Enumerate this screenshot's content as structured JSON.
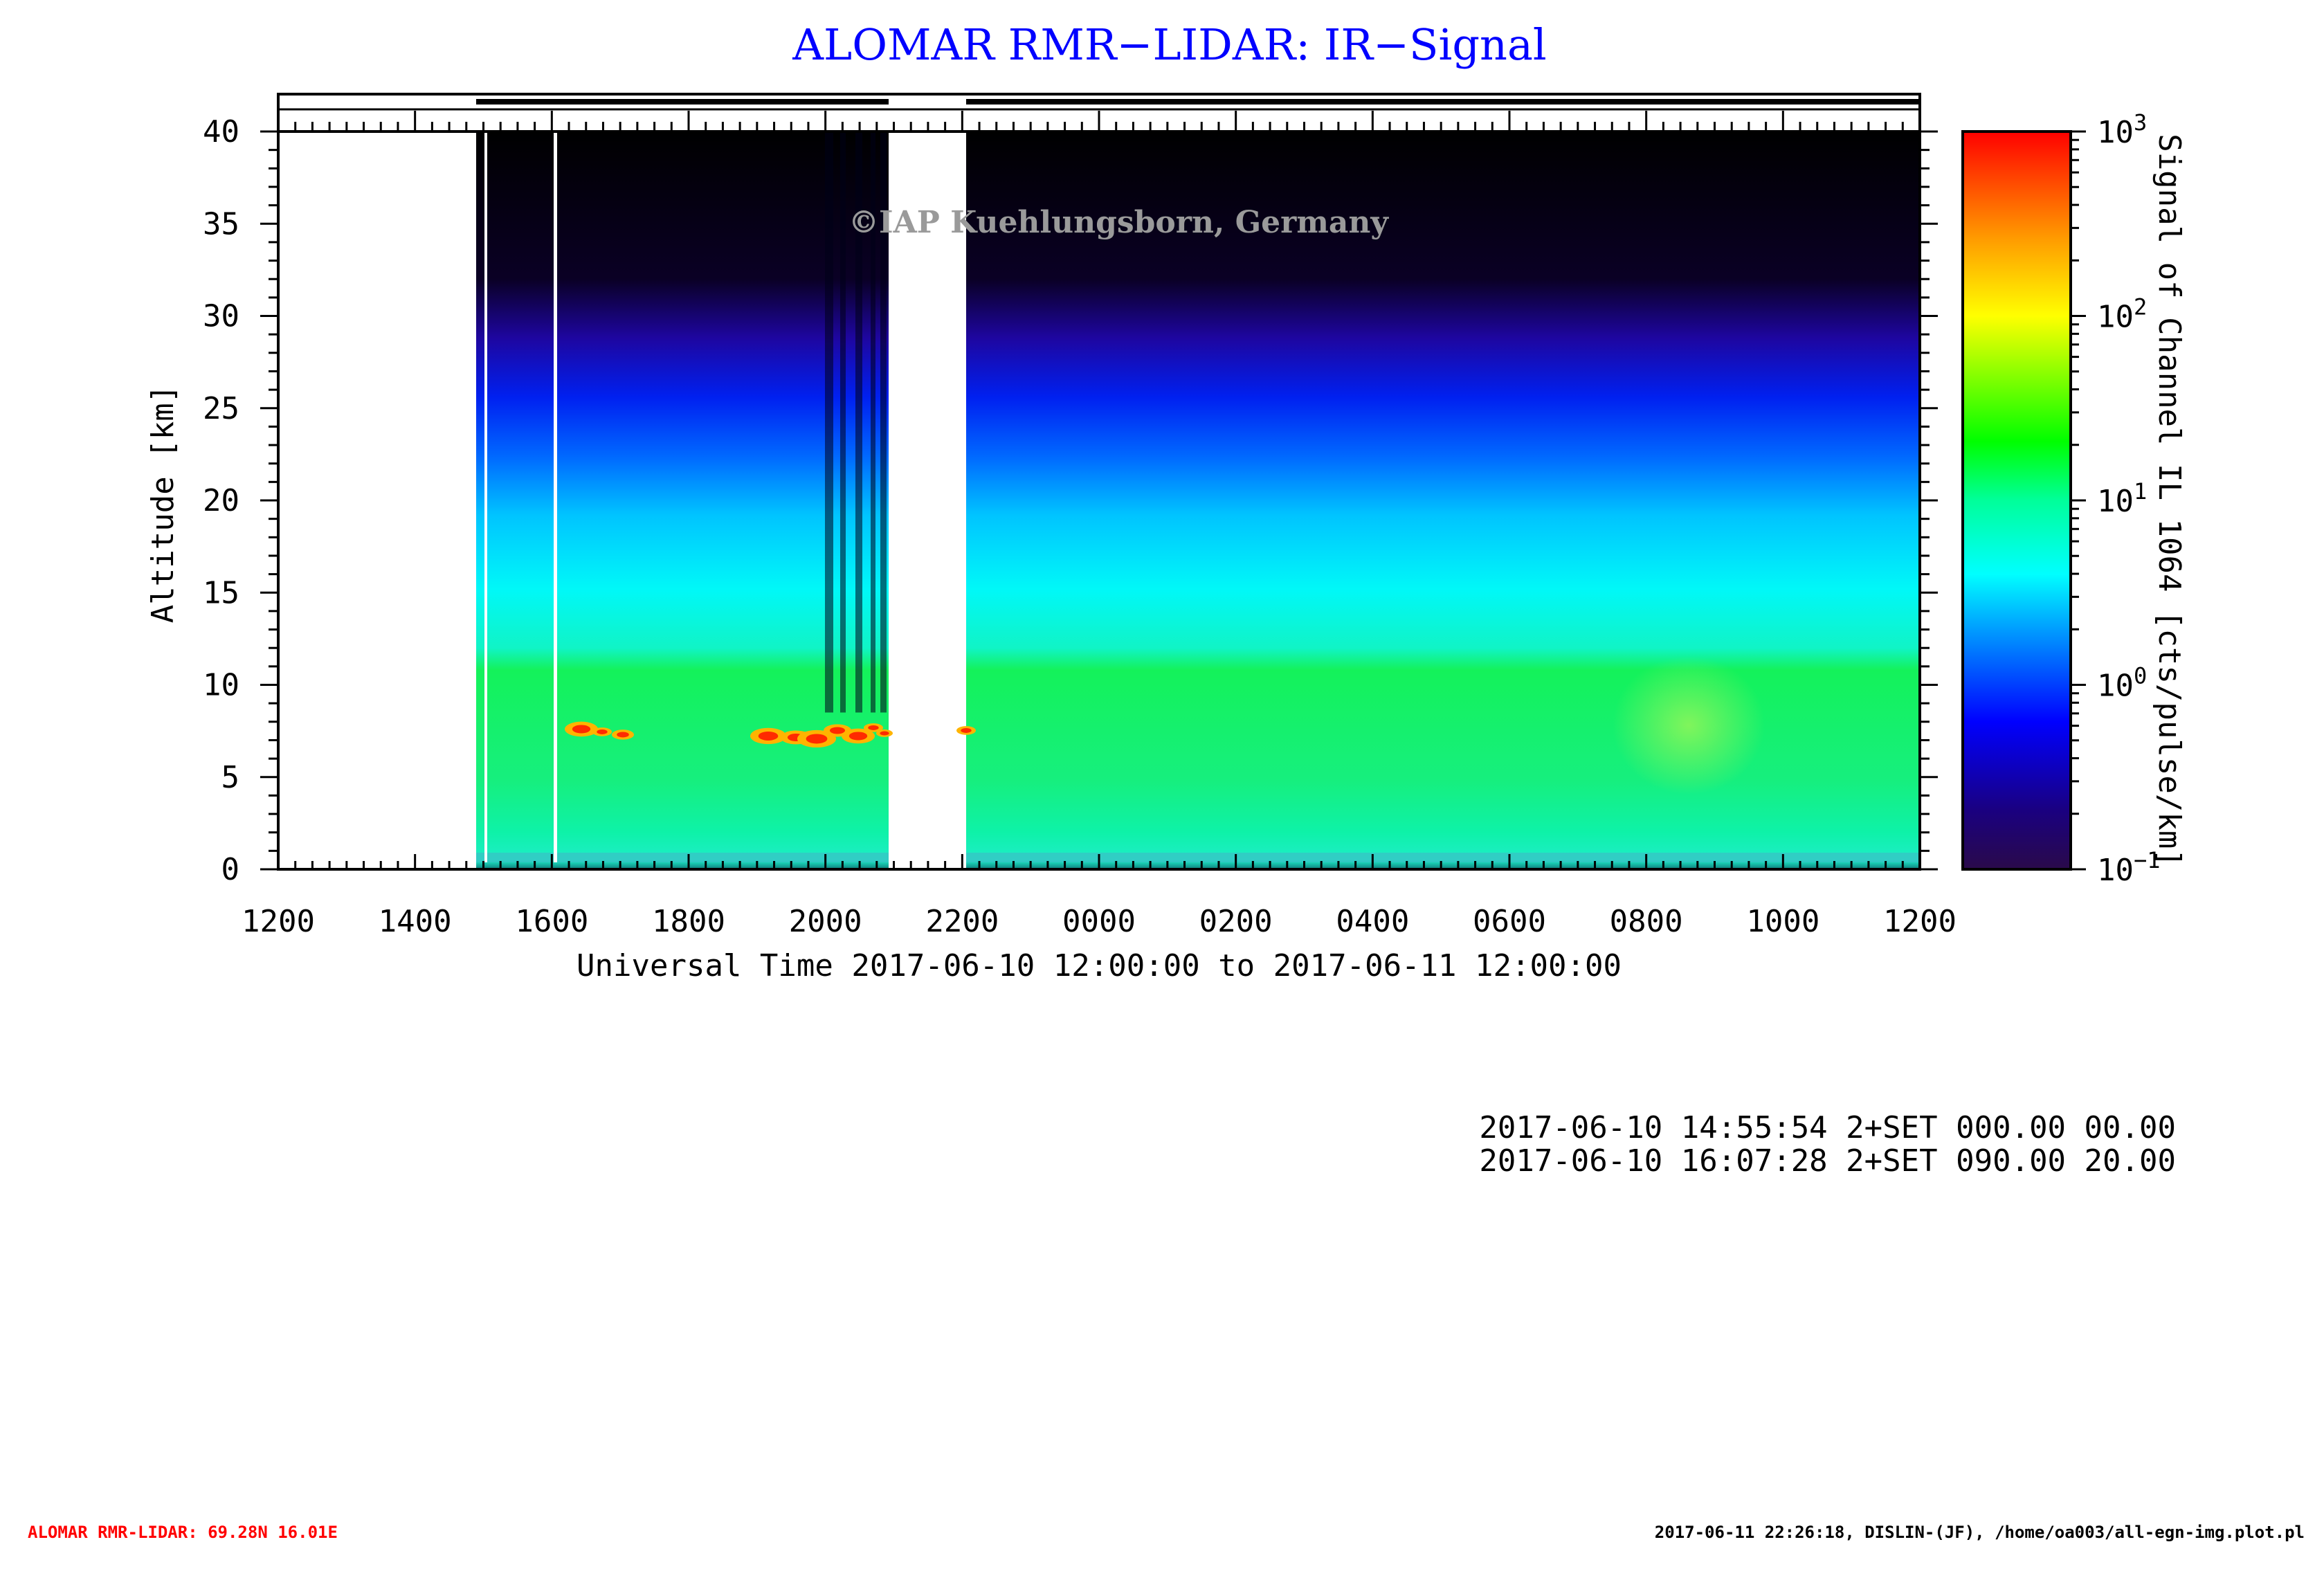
{
  "title": "ALOMAR RMR−LIDAR: IR−Signal",
  "watermark": "©IAP Kuehlungsborn, Germany",
  "chart_data": {
    "type": "heatmap",
    "ylabel": "Altitude [km]",
    "xlabel": "Universal Time 2017-06-10 12:00:00 to 2017-06-11 12:00:00",
    "x_tick_labels": [
      "1200",
      "1400",
      "1600",
      "1800",
      "2000",
      "2200",
      "0000",
      "0200",
      "0400",
      "0600",
      "0800",
      "1000",
      "1200"
    ],
    "y_tick_labels": [
      "0",
      "5",
      "10",
      "15",
      "20",
      "25",
      "30",
      "35",
      "40"
    ],
    "xlim_hours": [
      0,
      24
    ],
    "ylim": [
      0,
      40
    ],
    "colorbar": {
      "label": "Signal of Channel IL 1064 [cts/pulse/km]",
      "scale": "log",
      "range": [
        0.1,
        1000
      ],
      "tick_labels": [
        {
          "base": "10",
          "exp": "3"
        },
        {
          "base": "10",
          "exp": "2"
        },
        {
          "base": "10",
          "exp": "1"
        },
        {
          "base": "10",
          "exp": "0"
        },
        {
          "base": "10",
          "exp": "−1"
        }
      ]
    },
    "data_gaps_ut": [
      [
        "12:00",
        "14:55"
      ],
      [
        "20:55",
        "22:05"
      ]
    ],
    "cloud_layer_km": [
      6.5,
      8.5
    ],
    "measurement_bars": [
      [
        "14:55",
        "20:55"
      ],
      [
        "22:05",
        "12:00"
      ]
    ]
  },
  "info_lines": [
    "2017-06-10 14:55:54 2+SET 000.00 00.00",
    "2017-06-10 16:07:28 2+SET 090.00 20.00"
  ],
  "footer_left": "ALOMAR RMR-LIDAR: 69.28N 16.01E",
  "footer_right": "2017-06-11 22:26:18, DISLIN-(JF), /home/oa003/all-egn-img.plot.pl",
  "colors": {
    "title": "#0000ff",
    "footer_left": "#ff0000"
  }
}
